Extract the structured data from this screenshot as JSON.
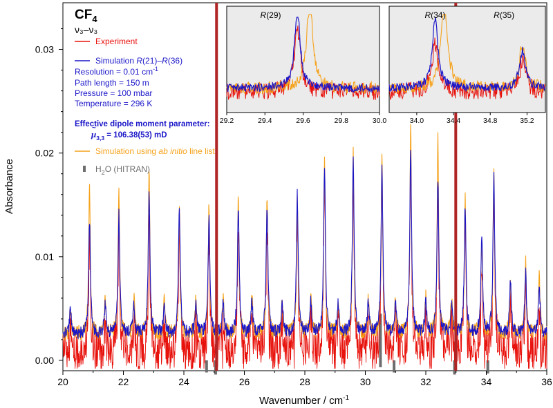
{
  "chart_data": {
    "type": "line",
    "xlabel": "Wavenumber / cm",
    "xlabel_sup": "-1",
    "ylabel": "Absorbance",
    "xlim": [
      20,
      36
    ],
    "ylim": [
      -0.001,
      0.0345
    ],
    "x_ticks": [
      "20",
      "22",
      "24",
      "26",
      "28",
      "30",
      "32",
      "34",
      "36"
    ],
    "y_ticks": [
      "0.00",
      "0.01",
      "0.02",
      "0.03"
    ],
    "grid": false,
    "legend_position": "top-left",
    "annotation": {
      "molecule": "CF",
      "molecule_sub": "4",
      "band": "ν₃–ν₃",
      "resolution": "Resolution = 0.01 cm",
      "resolution_sup": "-1",
      "path_length": "Path length = 150 m",
      "pressure": "Pressure = 100 mbar",
      "temperature": "Temperature = 296 K",
      "dipole_title": "Effective dipole moment parameter:",
      "dipole_symbol": "μ",
      "dipole_sub": "3,3",
      "dipole_value": " = 106.38(53) mD"
    },
    "colors": {
      "experiment": "#e8120c",
      "simulation": "#1a16c8",
      "ab_initio": "#f5a21a",
      "h2o": "#6e6e6e",
      "marker": "#b02525",
      "inset_bg": "#ebebeb"
    },
    "series": [
      {
        "name": "Experiment",
        "color": "#e8120c"
      },
      {
        "name_parts": [
          "Simulation ",
          "R",
          "(21)–",
          "R",
          "(36)"
        ],
        "color": "#1a16c8"
      },
      {
        "name_parts": [
          "Simulation using ",
          "ab initio",
          " line list"
        ],
        "color": "#f5a21a"
      },
      {
        "name_parts": [
          "H",
          "2",
          "O (HITRAN)"
        ],
        "color": "#6e6e6e"
      }
    ],
    "baseline": 0.0025,
    "peaks": [
      {
        "x": 20.25,
        "sim": 0.0048,
        "abi": 0.005
      },
      {
        "x": 20.88,
        "sim": 0.0135,
        "abi": 0.017
      },
      {
        "x": 21.4,
        "sim": 0.0052,
        "abi": 0.0057
      },
      {
        "x": 21.85,
        "sim": 0.014,
        "abi": 0.0165
      },
      {
        "x": 22.35,
        "sim": 0.0055,
        "abi": 0.006
      },
      {
        "x": 22.85,
        "sim": 0.016,
        "abi": 0.018
      },
      {
        "x": 23.35,
        "sim": 0.0052,
        "abi": 0.0057
      },
      {
        "x": 23.85,
        "sim": 0.0145,
        "abi": 0.015
      },
      {
        "x": 24.4,
        "sim": 0.0055,
        "abi": 0.006
      },
      {
        "x": 24.83,
        "sim": 0.014,
        "abi": 0.015
      },
      {
        "x": 25.3,
        "sim": 0.0055,
        "abi": 0.006
      },
      {
        "x": 25.8,
        "sim": 0.0148,
        "abi": 0.0155
      },
      {
        "x": 26.25,
        "sim": 0.0055,
        "abi": 0.006
      },
      {
        "x": 26.75,
        "sim": 0.015,
        "abi": 0.0163
      },
      {
        "x": 27.25,
        "sim": 0.0055,
        "abi": 0.006
      },
      {
        "x": 27.75,
        "sim": 0.016,
        "abi": 0.0165
      },
      {
        "x": 28.2,
        "sim": 0.0055,
        "abi": 0.006
      },
      {
        "x": 28.65,
        "sim": 0.0188,
        "abi": 0.0197
      },
      {
        "x": 29.1,
        "sim": 0.0055,
        "abi": 0.006
      },
      {
        "x": 29.6,
        "sim": 0.0192,
        "abi": 0.0198
      },
      {
        "x": 30.1,
        "sim": 0.0055,
        "abi": 0.006
      },
      {
        "x": 30.55,
        "sim": 0.019,
        "abi": 0.02
      },
      {
        "x": 31.0,
        "sim": 0.0055,
        "abi": 0.006
      },
      {
        "x": 31.5,
        "sim": 0.0205,
        "abi": 0.0225
      },
      {
        "x": 32.0,
        "sim": 0.0055,
        "abi": 0.006
      },
      {
        "x": 32.4,
        "sim": 0.0175,
        "abi": 0.022
      },
      {
        "x": 32.85,
        "sim": 0.0055,
        "abi": 0.006
      },
      {
        "x": 33.3,
        "sim": 0.015,
        "abi": 0.0155
      },
      {
        "x": 33.85,
        "sim": 0.0115,
        "abi": 0.012
      },
      {
        "x": 34.25,
        "sim": 0.0175,
        "abi": 0.018
      },
      {
        "x": 34.8,
        "sim": 0.0075,
        "abi": 0.008
      },
      {
        "x": 35.3,
        "sim": 0.0085,
        "abi": 0.0095
      },
      {
        "x": 35.75,
        "sim": 0.0072,
        "abi": 0.0085
      }
    ],
    "h2o_lines": [
      {
        "x": 25.05,
        "y": -0.0007
      },
      {
        "x": 30.5,
        "y": 0.0045
      },
      {
        "x": 32.95,
        "y": -0.0007
      },
      {
        "x": 24.75,
        "y": -0.0005
      },
      {
        "x": 30.95,
        "y": -0.0005
      },
      {
        "x": 34.05,
        "y": -0.0006
      }
    ],
    "marker_lines": [
      25.08,
      32.99
    ],
    "insets": [
      {
        "xlim": [
          29.2,
          30.0
        ],
        "x_ticks": [
          "29.2",
          "29.4",
          "29.6",
          "29.8",
          "30.0"
        ],
        "labels": [
          {
            "text": "R",
            "num": "(29)",
            "x": 29.43
          }
        ],
        "peaks": [
          {
            "x": 29.57,
            "sim": 0.9,
            "abi": 0.4,
            "abi_x": 29.635,
            "abi_h": 1.0,
            "exp": 0.75
          }
        ]
      },
      {
        "xlim": [
          33.7,
          35.4
        ],
        "x_ticks": [
          "34.0",
          "34.4",
          "34.8",
          "35.2"
        ],
        "labels": [
          {
            "text": "R",
            "num": "(34)",
            "x": 34.2
          },
          {
            "text": "R",
            "num": "(35)",
            "x": 34.95
          }
        ],
        "peaks": [
          {
            "x": 34.2,
            "sim": 0.8,
            "abi": 0.45,
            "abi_x": 34.3,
            "abi_h": 1.0,
            "exp": 0.55
          },
          {
            "x": 35.15,
            "sim": 0.45,
            "abi": 0.45,
            "abi_x": 35.15,
            "abi_h": 0.5,
            "exp": 0.35
          }
        ]
      }
    ]
  }
}
